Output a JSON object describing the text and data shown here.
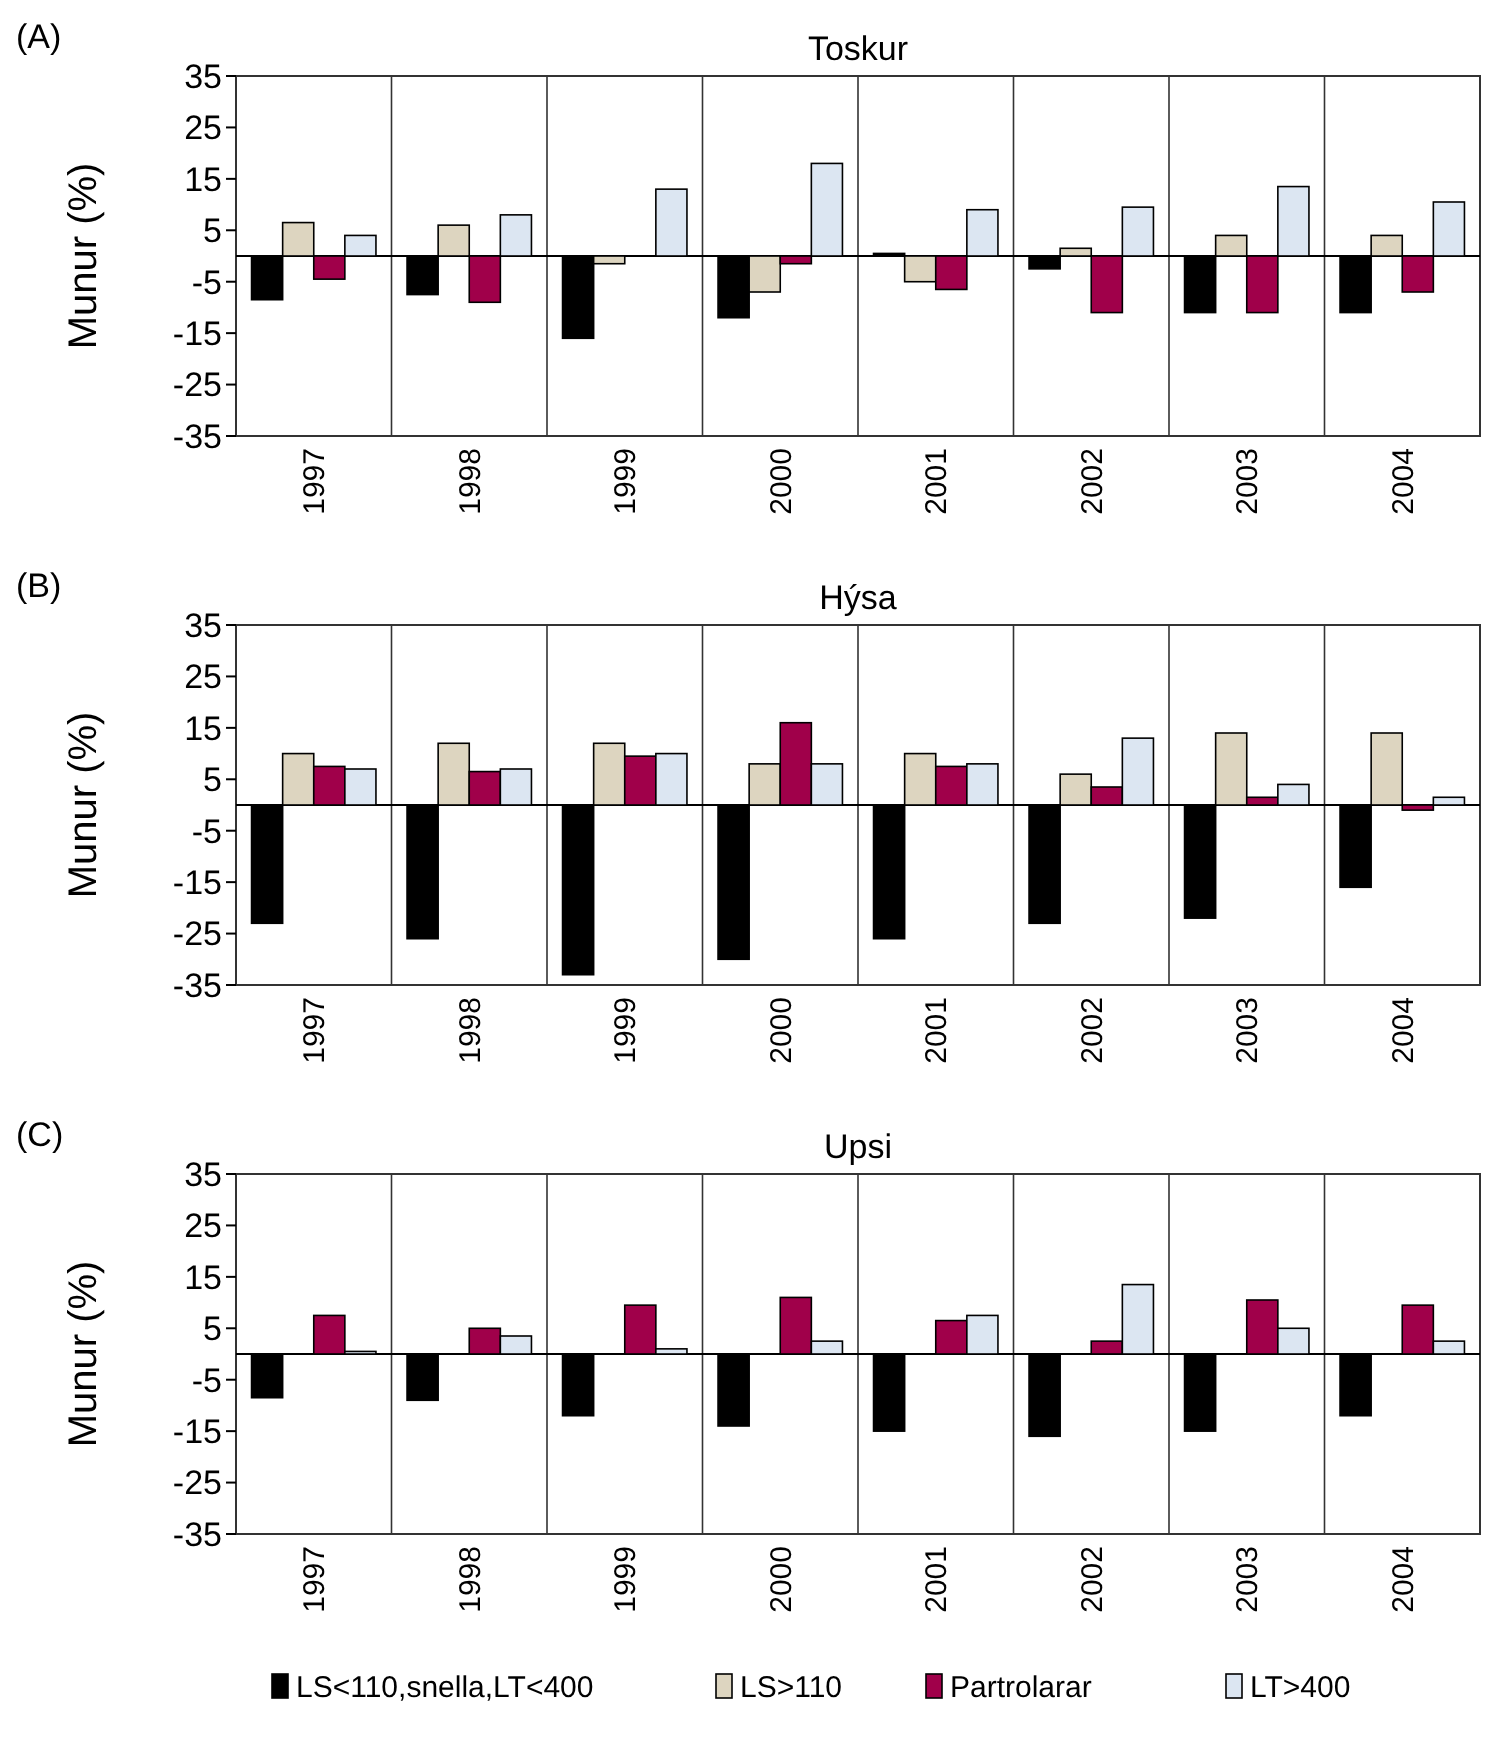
{
  "chart_data": [
    {
      "type": "bar",
      "title": "Toskur",
      "ylabel": "Munur  (%)",
      "annotations": [
        "(A)"
      ],
      "categories": [
        "1997",
        "1998",
        "1999",
        "2000",
        "2001",
        "2002",
        "2003",
        "2004"
      ],
      "ylim": [
        -35,
        35
      ],
      "yticks": [
        -35,
        -25,
        -15,
        -5,
        5,
        15,
        25,
        35
      ],
      "grid": "x",
      "series": [
        {
          "color": "#000000",
          "values": [
            -8.5,
            -7.5,
            -16,
            -12,
            0.5,
            -2.5,
            -11,
            -11
          ]
        },
        {
          "color": "#ddd5c0",
          "values": [
            6.5,
            6,
            -1.5,
            -7,
            -5,
            1.5,
            4,
            4
          ]
        },
        {
          "color": "#a0004a",
          "values": [
            -4.5,
            -9,
            null,
            -1.5,
            -6.5,
            -11,
            -11,
            -7
          ]
        },
        {
          "color": "#dce6f2",
          "values": [
            4,
            8,
            13,
            18,
            9,
            9.5,
            13.5,
            10.5
          ]
        }
      ]
    },
    {
      "type": "bar",
      "title": "Hýsa",
      "ylabel": "Munur  (%)",
      "annotations": [
        "(B)"
      ],
      "categories": [
        "1997",
        "1998",
        "1999",
        "2000",
        "2001",
        "2002",
        "2003",
        "2004"
      ],
      "ylim": [
        -35,
        35
      ],
      "yticks": [
        -35,
        -25,
        -15,
        -5,
        5,
        15,
        25,
        35
      ],
      "grid": "x",
      "series": [
        {
          "color": "#000000",
          "values": [
            -23,
            -26,
            -33,
            -30,
            -26,
            -23,
            -22,
            -16
          ]
        },
        {
          "color": "#ddd5c0",
          "values": [
            10,
            12,
            12,
            8,
            10,
            6,
            14,
            14
          ]
        },
        {
          "color": "#a0004a",
          "values": [
            7.5,
            6.5,
            9.5,
            16,
            7.5,
            3.5,
            1.5,
            -1
          ]
        },
        {
          "color": "#dce6f2",
          "values": [
            7,
            7,
            10,
            8,
            8,
            13,
            4,
            1.5
          ]
        }
      ]
    },
    {
      "type": "bar",
      "title": "Upsi",
      "ylabel": "Munur  (%)",
      "annotations": [
        "(C)"
      ],
      "categories": [
        "1997",
        "1998",
        "1999",
        "2000",
        "2001",
        "2002",
        "2003",
        "2004"
      ],
      "ylim": [
        -35,
        35
      ],
      "yticks": [
        -35,
        -25,
        -15,
        -5,
        5,
        15,
        25,
        35
      ],
      "grid": "x",
      "legend": "bottom",
      "series": [
        {
          "name": "LS<110,snella,LT<400",
          "color": "#000000",
          "values": [
            -8.5,
            -9,
            -12,
            -14,
            -15,
            -16,
            -15,
            -12
          ]
        },
        {
          "name": "LS>110",
          "color": "#ddd5c0",
          "values": [
            null,
            null,
            null,
            null,
            null,
            null,
            null,
            null
          ]
        },
        {
          "name": "Partrolarar",
          "color": "#a0004a",
          "values": [
            7.5,
            5,
            9.5,
            11,
            6.5,
            2.5,
            10.5,
            9.5
          ]
        },
        {
          "name": "LT>400",
          "color": "#dce6f2",
          "values": [
            0.5,
            3.5,
            1,
            2.5,
            7.5,
            13.5,
            5,
            2.5
          ]
        }
      ]
    }
  ]
}
